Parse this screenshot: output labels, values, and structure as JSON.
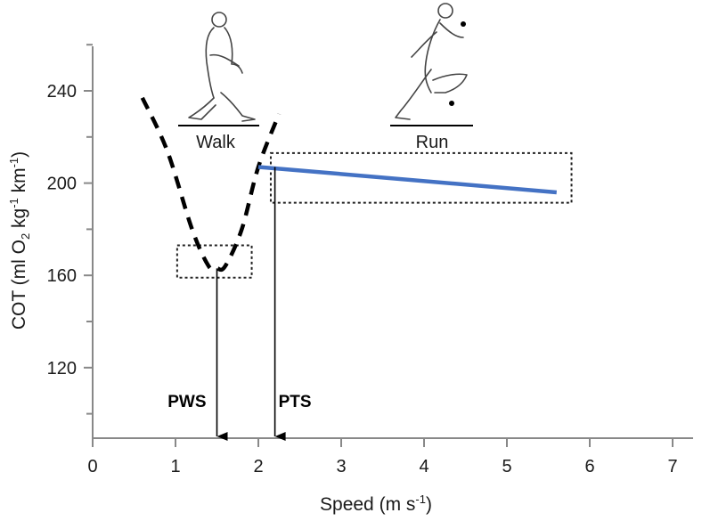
{
  "chart_data": {
    "type": "line",
    "xlabel": "Speed  (m s⁻¹)",
    "ylabel": "COT (ml O₂ kg⁻¹ km⁻¹)",
    "xlim": [
      0,
      7.4
    ],
    "ylim": [
      90,
      260
    ],
    "x_ticks": [
      0,
      1,
      2,
      3,
      4,
      5,
      6,
      7
    ],
    "y_ticks": [
      120,
      160,
      200,
      240
    ],
    "y_minor_ticks": [
      100,
      140,
      180,
      220,
      260
    ],
    "grid": false,
    "series": [
      {
        "label": "walk",
        "style": "dashed",
        "color": "#000000",
        "x": [
          0.6,
          0.9,
          1.2,
          1.4,
          1.5,
          1.6,
          1.8,
          2.0,
          2.25
        ],
        "y": [
          237,
          214,
          180,
          164,
          163,
          164,
          180,
          207,
          230
        ]
      },
      {
        "label": "run",
        "style": "solid",
        "color": "#4472c4",
        "x": [
          2.0,
          5.6
        ],
        "y": [
          207,
          196
        ]
      }
    ],
    "highlight_boxes": [
      {
        "x": [
          1.02,
          1.92
        ],
        "y": [
          159,
          173
        ]
      },
      {
        "x": [
          2.15,
          5.78
        ],
        "y": [
          191.5,
          213
        ]
      }
    ],
    "annotations": [
      {
        "text": "PWS",
        "x": 1.5,
        "arrow_from_y": 163
      },
      {
        "text": "PTS",
        "x": 2.2,
        "arrow_from_y": 207
      }
    ],
    "figure_labels": [
      "Walk",
      "Run"
    ]
  },
  "colors": {
    "run_line": "#4472c4",
    "axis": "#888888"
  }
}
